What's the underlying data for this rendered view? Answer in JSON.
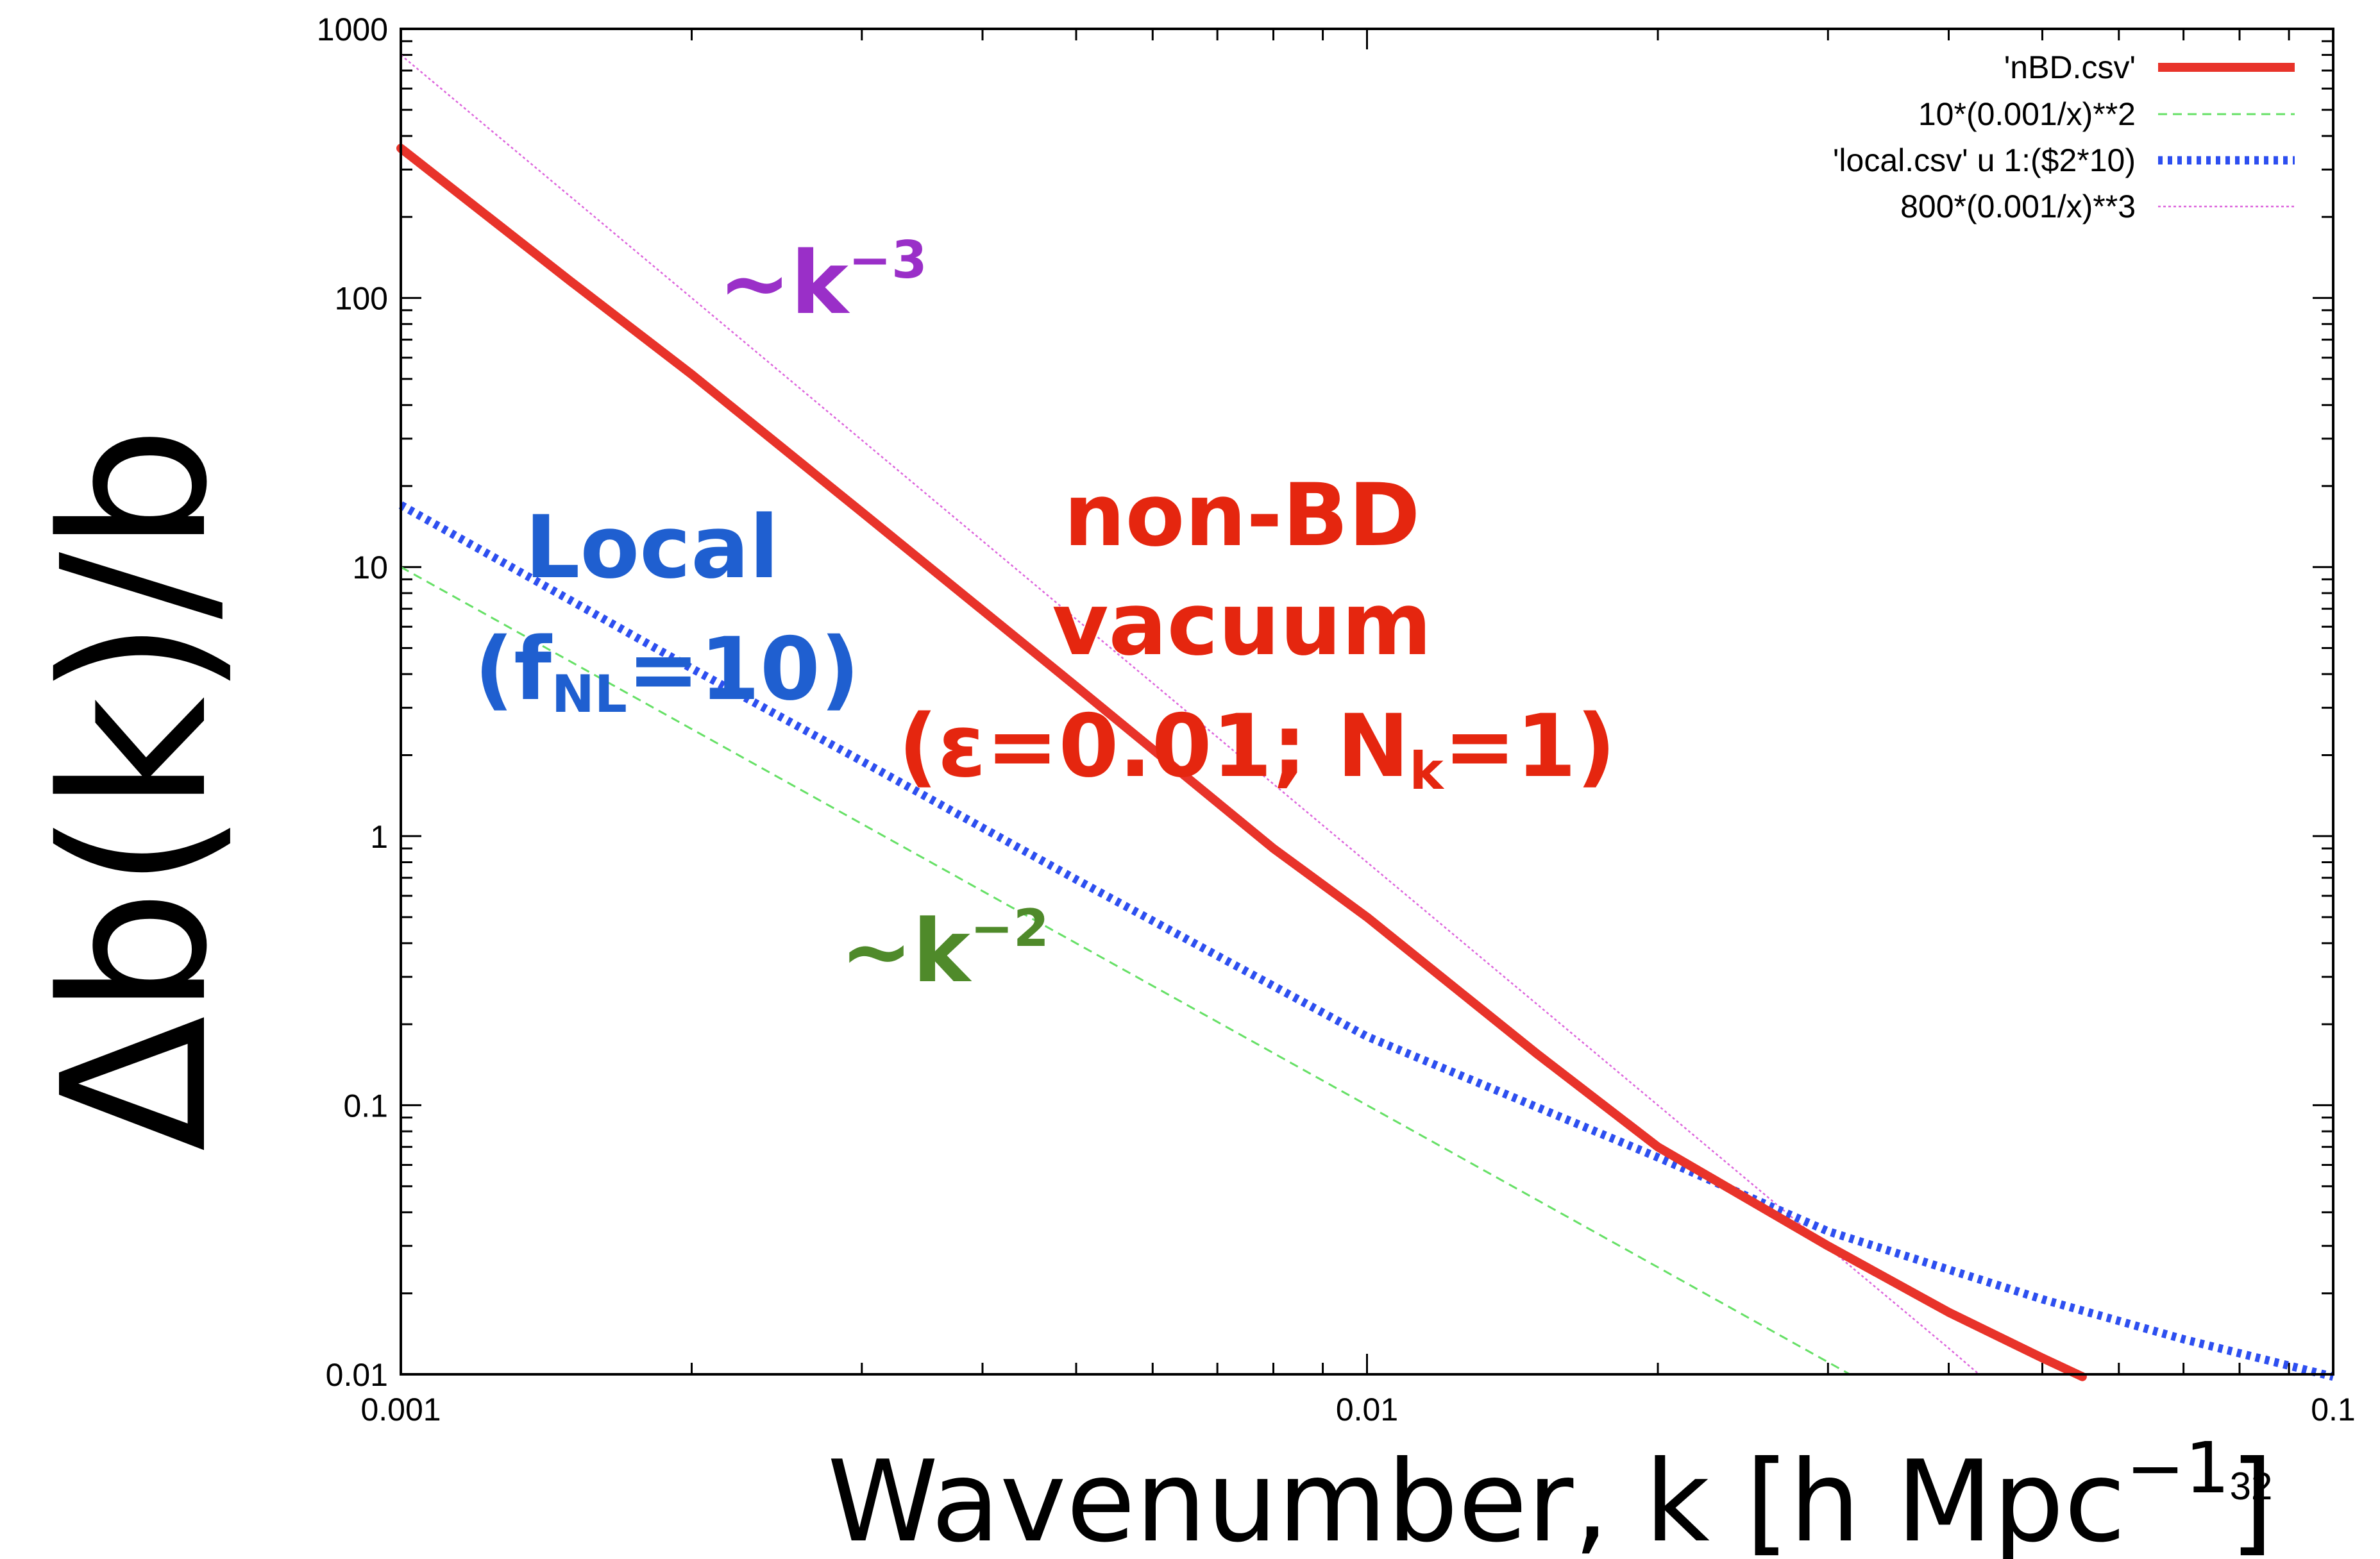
{
  "chart_data": {
    "type": "line",
    "xlabel": "Wavenumber, k [h Mpc",
    "xlabel_exp": "−1",
    "xlabel_end": "]",
    "ylabel": "Δb(k)/b",
    "xscale": "log",
    "yscale": "log",
    "xlim": [
      0.001,
      0.1
    ],
    "ylim": [
      0.01,
      1000
    ],
    "x_ticks": [
      {
        "value": 0.001,
        "label": "0.001"
      },
      {
        "value": 0.01,
        "label": "0.01"
      },
      {
        "value": 0.1,
        "label": "0.1"
      }
    ],
    "y_ticks": [
      {
        "value": 0.01,
        "label": "0.01"
      },
      {
        "value": 0.1,
        "label": "0.1"
      },
      {
        "value": 1,
        "label": "1"
      },
      {
        "value": 10,
        "label": "10"
      },
      {
        "value": 100,
        "label": "100"
      },
      {
        "value": 1000,
        "label": "1000"
      }
    ],
    "legend_position": "top-right",
    "series": [
      {
        "name": "'nBD.csv'",
        "color": "#e8332a",
        "style": "solid",
        "x": [
          0.001,
          0.0015,
          0.002,
          0.003,
          0.005,
          0.008,
          0.01,
          0.015,
          0.02,
          0.03,
          0.04,
          0.05,
          0.055
        ],
        "y": [
          360,
          115,
          52,
          16,
          3.6,
          0.9,
          0.5,
          0.155,
          0.07,
          0.03,
          0.017,
          0.0115,
          0.0098
        ]
      },
      {
        "name": "10*(0.001/x)**2",
        "color": "#66e066",
        "style": "dashed",
        "x": [
          0.001,
          0.002,
          0.005,
          0.01,
          0.02,
          0.03,
          0.0316
        ],
        "y": [
          10,
          2.5,
          0.4,
          0.1,
          0.025,
          0.0111,
          0.01
        ]
      },
      {
        "name": "'local.csv' u 1:($2*10)",
        "color": "#2d4ff0",
        "style": "dotted",
        "x": [
          0.001,
          0.002,
          0.003,
          0.005,
          0.01,
          0.02,
          0.03,
          0.05,
          0.07,
          0.1
        ],
        "y": [
          17,
          4.2,
          1.9,
          0.69,
          0.18,
          0.064,
          0.034,
          0.019,
          0.0135,
          0.0098
        ]
      },
      {
        "name": "800*(0.001/x)**3",
        "color": "#dd66dd",
        "style": "dotted-thin",
        "x": [
          0.001,
          0.002,
          0.005,
          0.01,
          0.02,
          0.03,
          0.04,
          0.043
        ],
        "y": [
          800,
          100,
          6.4,
          0.8,
          0.1,
          0.0296,
          0.0125,
          0.01
        ]
      }
    ],
    "annotations": {
      "k3_text": "~k",
      "k3_sup": "−3",
      "k2_text": "~k",
      "k2_sup": "−2",
      "local_line1": "Local",
      "local_line2_pre": "(f",
      "local_line2_sub": "NL",
      "local_line2_post": "=10)",
      "nbd_line1": "non-BD",
      "nbd_line2": "vacuum",
      "nbd_line3_pre": "(ε=0.01; N",
      "nbd_line3_sub": "k",
      "nbd_line3_post": "=1)",
      "colors": {
        "k3": "#9a2fc8",
        "k2": "#4f8a2a",
        "local": "#1f5fd0",
        "nbd": "#e5260f"
      }
    }
  },
  "slide_number": "32"
}
